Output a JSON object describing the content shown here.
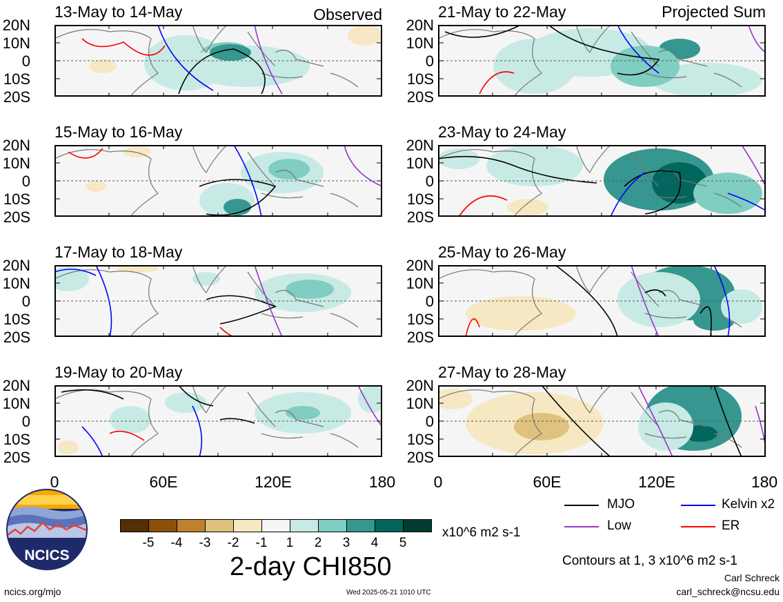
{
  "panels": [
    {
      "title": "13-May to 14-May",
      "right_label": "Observed"
    },
    {
      "title": "15-May to 16-May",
      "right_label": ""
    },
    {
      "title": "17-May to 18-May",
      "right_label": ""
    },
    {
      "title": "19-May to 20-May",
      "right_label": ""
    },
    {
      "title": "21-May to 22-May",
      "right_label": "Projected Sum"
    },
    {
      "title": "23-May to 24-May",
      "right_label": ""
    },
    {
      "title": "25-May to 26-May",
      "right_label": ""
    },
    {
      "title": "27-May to 28-May",
      "right_label": ""
    }
  ],
  "lat_labels": [
    "20N",
    "10N",
    "0",
    "10S",
    "20S"
  ],
  "lon_labels": [
    "0",
    "60E",
    "120E",
    "180"
  ],
  "colorbar": {
    "ticks": [
      "-5",
      "-4",
      "-3",
      "-2",
      "-1",
      "1",
      "2",
      "3",
      "4",
      "5"
    ],
    "colors": [
      "#543005",
      "#8c510a",
      "#bf812d",
      "#dfc27d",
      "#f6e8c3",
      "#f5f5f5",
      "#c7eae5",
      "#80cdc1",
      "#35978f",
      "#01665e",
      "#003c30"
    ],
    "units": "x10^6 m2 s-1"
  },
  "main_title": "2-day CHI850",
  "legend": [
    {
      "label": "MJO",
      "color": "#000000"
    },
    {
      "label": "Kelvin x2",
      "color": "#0000ff"
    },
    {
      "label": "Low",
      "color": "#9932cc"
    },
    {
      "label": "ER",
      "color": "#ff0000"
    }
  ],
  "contour_note": "Contours at 1, 3 x10^6 m2 s-1",
  "author": "Carl Schreck",
  "email": "carl_schreck@ncsu.edu",
  "site": "ncics.org/mjo",
  "timestamp": "Wed 2025-05-21 1010 UTC",
  "logo_text": "NCICS"
}
